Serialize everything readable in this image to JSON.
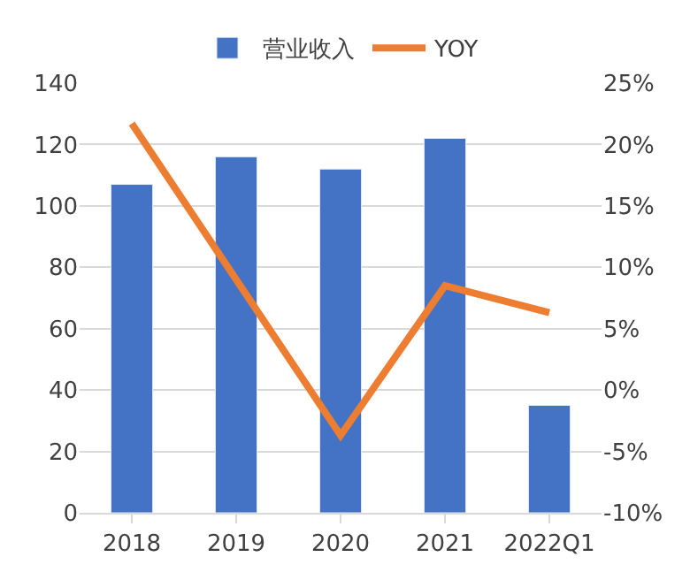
{
  "chart_data": {
    "type": "bar",
    "categories": [
      "2018",
      "2019",
      "2020",
      "2021",
      "2022Q1"
    ],
    "series": [
      {
        "name": "营业收入",
        "color": "#4472c4",
        "values": [
          107,
          116,
          112,
          122,
          35
        ]
      },
      {
        "name": "YOY",
        "type": "line",
        "axis": "y2",
        "color": "#ed7d31",
        "values": [
          21.7,
          9.0,
          -3.7,
          8.5,
          6.3
        ]
      }
    ],
    "ylim": [
      0,
      140
    ],
    "yticks": [
      0,
      20,
      40,
      60,
      80,
      100,
      120,
      140
    ],
    "y2lim": [
      -10,
      25
    ],
    "y2ticks": [
      {
        "value": -10,
        "label": "-10%"
      },
      {
        "value": -5,
        "label": "-5%"
      },
      {
        "value": 0,
        "label": "0%"
      },
      {
        "value": 5,
        "label": "5%"
      },
      {
        "value": 10,
        "label": "10%"
      },
      {
        "value": 15,
        "label": "15%"
      },
      {
        "value": 20,
        "label": "20%"
      },
      {
        "value": 25,
        "label": "25%"
      }
    ],
    "grid": "y",
    "legend": "top",
    "marker": "none",
    "line_style": "solid"
  }
}
